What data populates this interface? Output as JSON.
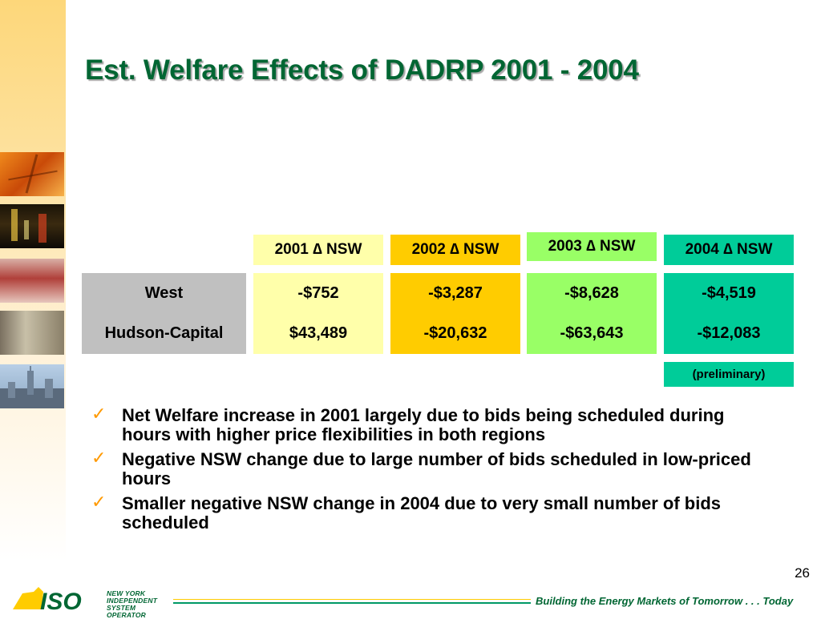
{
  "slide": {
    "title": "Est. Welfare Effects of DADRP 2001 - 2004",
    "page_number": "26"
  },
  "table": {
    "headers": [
      "2001 ∆ NSW",
      "2002 ∆ NSW",
      "2003 ∆ NSW",
      "2004 ∆ NSW"
    ],
    "rows": [
      {
        "label": "West",
        "values": [
          "-$752",
          "-$3,287",
          "-$8,628",
          "-$4,519"
        ]
      },
      {
        "label": "Hudson-Capital",
        "values": [
          "$43,489",
          "-$20,632",
          "-$63,643",
          "-$12,083"
        ]
      }
    ],
    "note_2004": "(preliminary)",
    "colors": {
      "2001": "#ffffaa",
      "2002": "#ffcc00",
      "2003": "#99ff66",
      "2004": "#00cc99",
      "row_labels": "#c0c0c0"
    }
  },
  "bullets": [
    "Net Welfare increase in 2001 largely due to bids being scheduled during hours with higher price flexibilities in both regions",
    "Negative NSW change due to large number of bids scheduled in low-priced hours",
    "Smaller negative NSW change in 2004 due to very small number of bids scheduled"
  ],
  "bullet_marker": "✓",
  "footer": {
    "tagline": "Building the Energy Markets of Tomorrow . . . Today",
    "logo_mark": "ISO",
    "logo_lines": [
      "NEW YORK",
      "INDEPENDENT",
      "SYSTEM OPERATOR"
    ]
  }
}
